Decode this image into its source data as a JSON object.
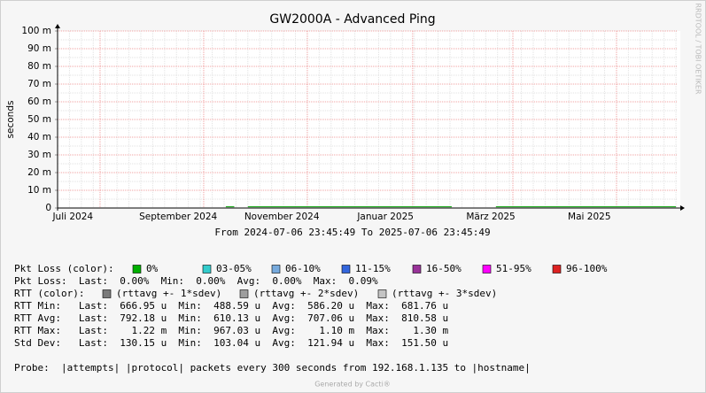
{
  "chart_data": {
    "type": "line",
    "title": "GW2000A - Advanced Ping",
    "y_label": "seconds",
    "side_note": "RRDTOOL / TOBI OETIKER",
    "subtitle": "From 2024-07-06 23:45:49 To 2025-07-06 23:45:49",
    "xlim": [
      "2024-07-06 23:45:49",
      "2025-07-06 23:45:49"
    ],
    "xticks": [
      {
        "value": "2024-07-16",
        "label": "Juli 2024"
      },
      {
        "value": "2024-09-16",
        "label": "September 2024"
      },
      {
        "value": "2024-11-16",
        "label": "November 2024"
      },
      {
        "value": "2025-01-16",
        "label": "Januar 2025"
      },
      {
        "value": "2025-03-19",
        "label": "März 2025"
      },
      {
        "value": "2025-05-16",
        "label": "Mai 2025"
      }
    ],
    "xgrid_major": [
      "2024-08-01",
      "2024-10-01",
      "2024-12-01",
      "2025-02-01",
      "2025-04-01",
      "2025-06-01"
    ],
    "ylim": [
      0,
      0.1
    ],
    "yticks": [
      0,
      {
        "value": 0.01,
        "label": "10 m"
      },
      {
        "value": 0.02,
        "label": "20 m"
      },
      {
        "value": 0.03,
        "label": "30 m"
      },
      {
        "value": 0.04,
        "label": "40 m"
      },
      {
        "value": 0.05,
        "label": "50 m"
      },
      {
        "value": 0.06,
        "label": "60 m"
      },
      {
        "value": 0.07,
        "label": "70 m"
      },
      {
        "value": 0.08,
        "label": "80 m"
      },
      {
        "value": 0.09,
        "label": "90 m"
      },
      {
        "value": 0.1,
        "label": "100 m"
      }
    ],
    "grid": true,
    "series": [
      {
        "name": "0%",
        "color": "#00a000",
        "x": [
          "2024-07-06",
          "2024-10-14",
          "2024-10-19",
          "2024-10-22",
          "2024-10-27",
          "2024-11-30",
          "2025-01-01",
          "2025-02-24",
          "2025-03-08",
          "2025-03-22",
          "2025-05-01",
          "2025-07-06"
        ],
        "values": [
          null,
          0.0007,
          0.0007,
          null,
          0.0007,
          0.0007,
          0.0007,
          0.0007,
          null,
          0.0007,
          0.0007,
          0.0007
        ]
      }
    ],
    "loss_legend": {
      "label": "Pkt Loss (color):",
      "items": [
        {
          "label": "0%",
          "color": "#00b000"
        },
        {
          "label": "03-05%",
          "color": "#33cccc"
        },
        {
          "label": "06-10%",
          "color": "#77aadd"
        },
        {
          "label": "11-15%",
          "color": "#3366dd"
        },
        {
          "label": "16-50%",
          "color": "#993399"
        },
        {
          "label": "51-95%",
          "color": "#ff00ff"
        },
        {
          "label": "96-100%",
          "color": "#dd2222"
        }
      ]
    },
    "rtt_legend": {
      "label": "RTT (color):",
      "items": [
        {
          "label": "(rttavg +- 1*sdev)",
          "color": "#7a7a7a"
        },
        {
          "label": "(rttavg +- 2*sdev)",
          "color": "#9e9e9e"
        },
        {
          "label": "(rttavg +- 3*sdev)",
          "color": "#c4c4c4"
        }
      ]
    },
    "stats_lines": [
      "Pkt Loss:  Last:  0.00%  Min:  0.00%  Avg:  0.00%  Max:  0.09%",
      "RTT Min:   Last:  666.95 u  Min:  488.59 u  Avg:  586.20 u  Max:  681.76 u",
      "RTT Avg:   Last:  792.18 u  Min:  610.13 u  Avg:  707.06 u  Max:  810.58 u",
      "RTT Max:   Last:    1.22 m  Min:  967.03 u  Avg:    1.10 m  Max:    1.30 m",
      "Std Dev:   Last:  130.15 u  Min:  103.04 u  Avg:  121.94 u  Max:  151.50 u"
    ],
    "probe_line": "Probe:  |attempts| |protocol| packets every 300 seconds from 192.168.1.135 to |hostname|",
    "footer": "Generated by Cacti®"
  }
}
